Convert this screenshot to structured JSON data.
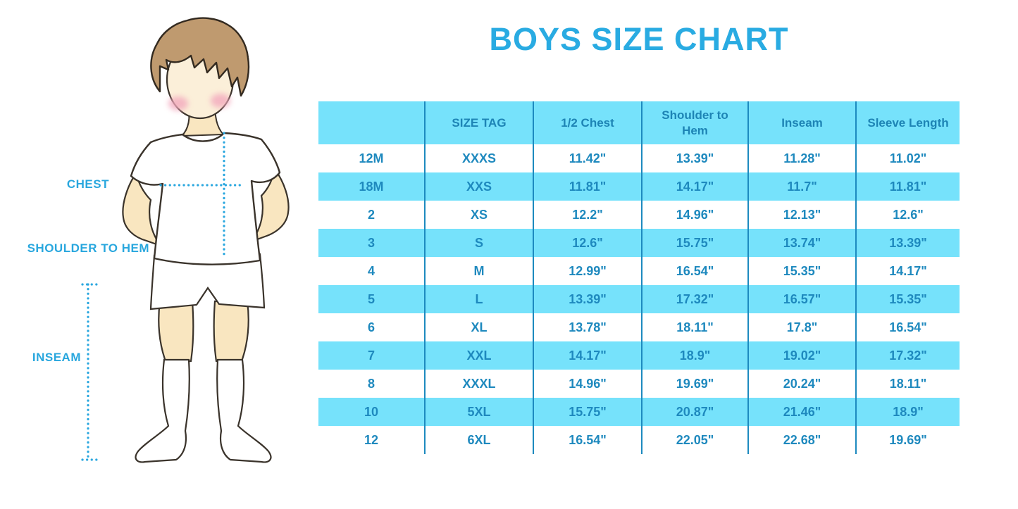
{
  "title": "BOYS SIZE CHART",
  "diagram": {
    "labels": {
      "chest": "CHEST",
      "shoulder_to_hem": "SHOULDER TO HEM",
      "inseam": "INSEAM"
    }
  },
  "colors": {
    "accent_blue": "#29ABE2",
    "table_fill_blue": "#76E2FB",
    "table_text_blue": "#1E89BE",
    "table_divider_blue": "#1D8ABF",
    "hair_brown": "#BF9A6F",
    "skin_tone": "#F9E6C0",
    "blush_pink": "#F3A9BD"
  },
  "chart_data": {
    "type": "table",
    "title": "BOYS SIZE CHART",
    "columns": [
      "",
      "SIZE TAG",
      "1/2 Chest",
      "Shoulder to Hem",
      "Inseam",
      "Sleeve Length"
    ],
    "rows": [
      [
        "12M",
        "XXXS",
        "11.42\"",
        "13.39\"",
        "11.28\"",
        "11.02\""
      ],
      [
        "18M",
        "XXS",
        "11.81\"",
        "14.17\"",
        "11.7\"",
        "11.81\""
      ],
      [
        "2",
        "XS",
        "12.2\"",
        "14.96\"",
        "12.13\"",
        "12.6\""
      ],
      [
        "3",
        "S",
        "12.6\"",
        "15.75\"",
        "13.74\"",
        "13.39\""
      ],
      [
        "4",
        "M",
        "12.99\"",
        "16.54\"",
        "15.35\"",
        "14.17\""
      ],
      [
        "5",
        "L",
        "13.39\"",
        "17.32\"",
        "16.57\"",
        "15.35\""
      ],
      [
        "6",
        "XL",
        "13.78\"",
        "18.11\"",
        "17.8\"",
        "16.54\""
      ],
      [
        "7",
        "XXL",
        "14.17\"",
        "18.9\"",
        "19.02\"",
        "17.32\""
      ],
      [
        "8",
        "XXXL",
        "14.96\"",
        "19.69\"",
        "20.24\"",
        "18.11\""
      ],
      [
        "10",
        "5XL",
        "15.75\"",
        "20.87\"",
        "21.46\"",
        "18.9\""
      ],
      [
        "12",
        "6XL",
        "16.54\"",
        "22.05\"",
        "22.68\"",
        "19.69\""
      ]
    ]
  }
}
